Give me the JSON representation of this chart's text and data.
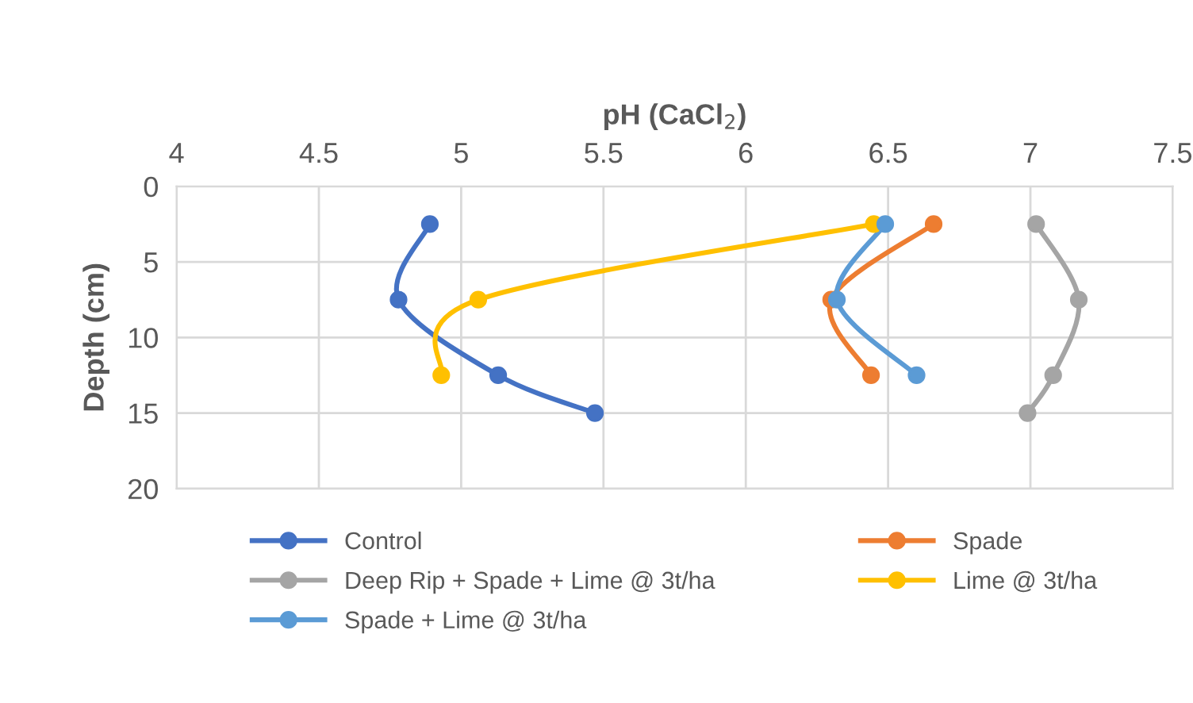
{
  "chart_data": {
    "type": "line",
    "xlabel": "pH (CaCl$_{2}$)",
    "ylabel": "Depth (cm)",
    "xlim": [
      4,
      7.5
    ],
    "xticks": [
      4,
      4.5,
      5,
      5.5,
      6,
      6.5,
      7,
      7.5
    ],
    "ylim": [
      20,
      0
    ],
    "yticks": [
      0,
      5,
      10,
      15,
      20
    ],
    "grid": true,
    "legend": "bottom",
    "marker": "circle",
    "line_style": "solid",
    "series": [
      {
        "name": "Control",
        "color": "#4472c4",
        "x": [
          4.89,
          4.78,
          5.13,
          5.47
        ],
        "values": [
          2.5,
          7.5,
          12.5,
          15
        ]
      },
      {
        "name": "Spade",
        "color": "#ed7d31",
        "x": [
          6.66,
          6.3,
          6.44
        ],
        "values": [
          2.5,
          7.5,
          12.5
        ]
      },
      {
        "name": "Deep Rip + Spade + Lime @ 3t/ha",
        "color": "#a5a5a5",
        "x": [
          7.02,
          7.17,
          7.08,
          6.99
        ],
        "values": [
          2.5,
          7.5,
          12.5,
          15
        ]
      },
      {
        "name": "Lime @ 3t/ha",
        "color": "#ffc000",
        "x": [
          6.45,
          5.06,
          4.93
        ],
        "values": [
          2.5,
          7.5,
          12.5
        ]
      },
      {
        "name": "Spade + Lime @ 3t/ha",
        "color": "#5b9bd5",
        "x": [
          6.49,
          6.32,
          6.6
        ],
        "values": [
          2.5,
          7.5,
          12.5
        ]
      }
    ]
  }
}
